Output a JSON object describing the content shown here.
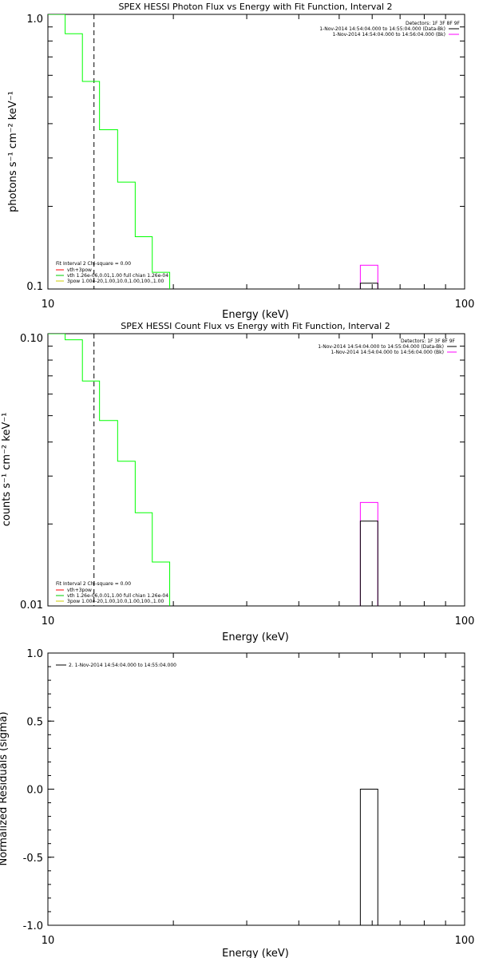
{
  "chart_data": [
    {
      "type": "line",
      "title": "SPEX HESSI Photon Flux vs Energy with Fit Function, Interval 2",
      "xlabel": "Energy (keV)",
      "ylabel": "photons s⁻¹ cm⁻² keV⁻¹",
      "xscale": "log",
      "yscale": "log",
      "xlim": [
        10,
        100
      ],
      "ylim": [
        0.1,
        1.0
      ],
      "xticks": [
        "10",
        "100"
      ],
      "yticks": [
        "0.1",
        "1.0"
      ],
      "legend_top_right": [
        "Detectors: 1F 3F 8F 9F",
        "1-Nov-2014 14:54:04.000 to 14:55:04.000 (Data-Bk)",
        "1-Nov-2014 14:54:04.000 to 14:56:04.000 (Bk)"
      ],
      "legend_bottom_left": [
        "Fit Interval 2   Chi-square = 0.00",
        "vth+3pow",
        "vth 1.26e-06,0.01,1.00  full chian 1.26e-04",
        "3pow 1.00e-20,1.00,10.0,1.00,100.,1.00"
      ],
      "dashed_line_x": 12.9,
      "series": [
        {
          "name": "vth+3pow",
          "color": "#00ff00",
          "edges": [
            10,
            11.0,
            12.1,
            13.3,
            14.7,
            16.2,
            17.8,
            19.6
          ],
          "values": [
            1.0,
            0.85,
            0.57,
            0.38,
            0.245,
            0.155,
            0.115
          ]
        },
        {
          "name": "1-Nov-2014 14:54:04.000 to 14:56:04.000 (Bk)",
          "color": "#ff00ff",
          "edges": [
            56.2,
            61.9
          ],
          "values": [
            0.122
          ]
        },
        {
          "name": "1-Nov-2014 14:54:04.000 to 14:55:04.000 (Data-Bk)",
          "color": "#000000",
          "edges": [
            56.2,
            61.9
          ],
          "values": [
            0.105
          ]
        }
      ]
    },
    {
      "type": "line",
      "title": "SPEX HESSI Count Flux vs Energy with Fit Function, Interval 2",
      "xlabel": "Energy (keV)",
      "ylabel": "counts s⁻¹ cm⁻² keV⁻¹",
      "xscale": "log",
      "yscale": "log",
      "xlim": [
        10,
        100
      ],
      "ylim": [
        0.01,
        0.1
      ],
      "xticks": [
        "10",
        "100"
      ],
      "yticks": [
        "0.01",
        "0.10"
      ],
      "legend_top_right": [
        "Detectors: 1F 3F 8F 9F",
        "1-Nov-2014 14:54:04.000 to 14:55:04.000 (Data-Bk)",
        "1-Nov-2014 14:54:04.000 to 14:56:04.000 (Bk)"
      ],
      "legend_bottom_left": [
        "Fit Interval 2   Chi-square = 0.00",
        "vth+3pow",
        "vth 1.26e-06,0.01,1.00  full chian 1.26e-04",
        "3pow 1.00e-20,1.00,10.0,1.00,100.,1.00"
      ],
      "dashed_line_x": 12.9,
      "series": [
        {
          "name": "vth+3pow",
          "color": "#00ff00",
          "edges": [
            10,
            11.0,
            12.1,
            13.3,
            14.7,
            16.2,
            17.8,
            19.6,
            21.6
          ],
          "values": [
            0.1,
            0.095,
            0.067,
            0.048,
            0.034,
            0.022,
            0.0145,
            0.0098
          ]
        },
        {
          "name": "1-Nov-2014 14:54:04.000 to 14:56:04.000 (Bk)",
          "color": "#ff00ff",
          "edges": [
            56.2,
            61.9
          ],
          "values": [
            0.024
          ]
        },
        {
          "name": "1-Nov-2014 14:54:04.000 to 14:55:04.000 (Data-Bk)",
          "color": "#000000",
          "edges": [
            56.2,
            61.9
          ],
          "values": [
            0.0205
          ]
        }
      ]
    },
    {
      "type": "bar",
      "title": "",
      "xlabel": "Energy (keV)",
      "ylabel": "Normalized Residuals (sigma)",
      "xscale": "log",
      "yscale": "linear",
      "xlim": [
        10,
        100
      ],
      "ylim": [
        -1.0,
        1.0
      ],
      "xticks": [
        "10",
        "100"
      ],
      "yticks": [
        "-1.0",
        "-0.5",
        "0.0",
        "0.5",
        "1.0"
      ],
      "ytick_values": [
        -1.0,
        -0.5,
        0.0,
        0.5,
        1.0
      ],
      "legend_top_left": [
        "2.  1-Nov-2014 14:54:04.000 to 14:55:04.000"
      ],
      "series": [
        {
          "name": "2.  1-Nov-2014 14:54:04.000 to 14:55:04.000",
          "color": "#000000",
          "edges": [
            56.2,
            61.9
          ],
          "values": [
            0.0
          ]
        }
      ]
    }
  ]
}
